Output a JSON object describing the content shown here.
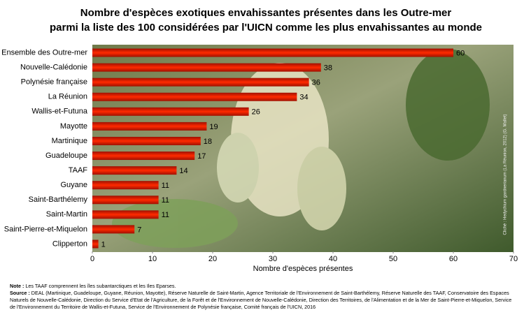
{
  "chart_data": {
    "type": "bar",
    "title": [
      "Nombre d'espèces exotiques envahissantes présentes dans les Outre-mer",
      "parmi la liste des 100 considérées par l'UICN comme les plus envahissantes au monde"
    ],
    "categories": [
      "Ensemble des Outre-mer",
      "Nouvelle-Calédonie",
      "Polynésie française",
      "La Réunion",
      "Wallis-et-Futuna",
      "Mayotte",
      "Martinique",
      "Guadeloupe",
      "TAAF",
      "Guyane",
      "Saint-Barthélemy",
      "Saint-Martin",
      "Saint-Pierre-et-Miquelon",
      "Clipperton"
    ],
    "values": [
      60,
      38,
      36,
      34,
      26,
      19,
      18,
      17,
      14,
      11,
      11,
      11,
      7,
      1
    ],
    "color": "#e02000",
    "xlim": [
      0,
      70
    ],
    "xticks": [
      0,
      10,
      20,
      30,
      40,
      50,
      60,
      70
    ],
    "xlabel": "Nombre d'espèces présentes",
    "photo_credit": "Cliché : Hedychium gardnerianum (La Réunion, 2012) (G. Mallet)",
    "note_label": "Note :",
    "note": "Les TAAF comprennent les îles subantarctiques et les Iles Eparses.",
    "source_label": "Source :",
    "source": "DEAL (Martinique, Guadeloupe, Guyane, Réunion, Mayotte), Réserve Naturelle de Saint-Martin, Agence Territoriale de l'Environnement de Saint-Barthélemy, Réserve Naturelle des TAAF, Conservatoire des Espaces Naturels de Nouvelle-Calédonie, Direction du Service d'Etat de l'Agriculture, de la Forêt et de l'Environnement de Nouvelle-Calédonie, Direction des Territoires, de l'Alimentation et de la Mer de Saint-Pierre-et-Miquelon, Service de l'Environnement du Territoire de Wallis-et-Futuna, Service de l'Environnement de Polynésie française, Comité français de l'UICN, 2016"
  }
}
